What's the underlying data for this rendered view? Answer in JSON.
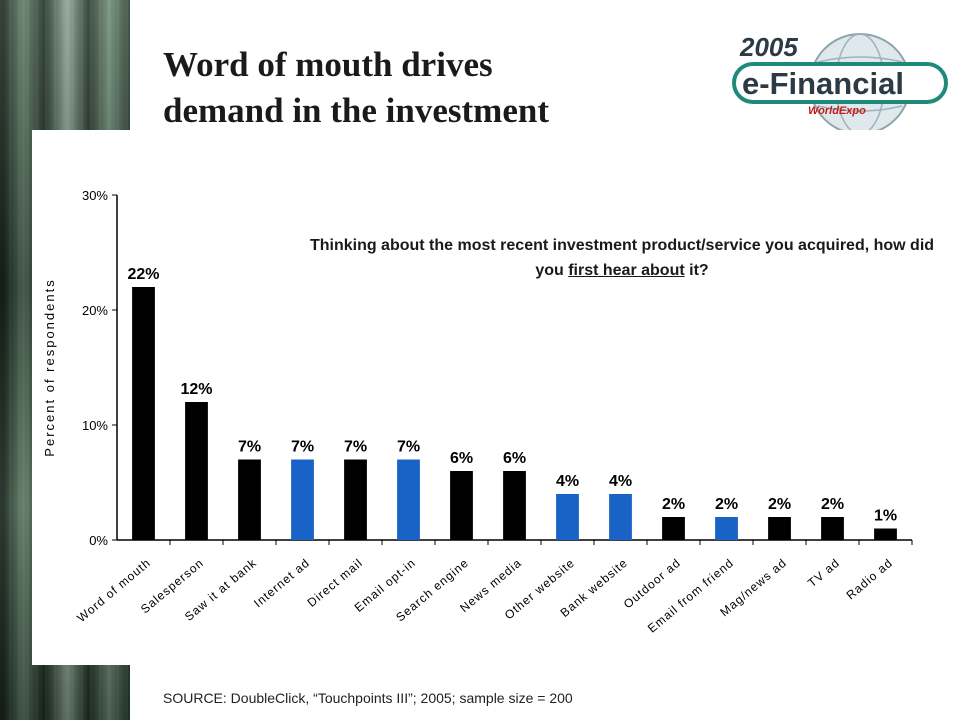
{
  "slide": {
    "title_line1": "Word of mouth drives",
    "title_line2": "demand in the investment",
    "source": "SOURCE: DoubleClick, “Touchpoints III”; 2005; sample size = 200"
  },
  "logo": {
    "year": "2005",
    "name": "e-Financial",
    "sub": "WorldExpo",
    "colors": {
      "teal": "#1f8a7a",
      "dark": "#2b3a44",
      "red": "#c41b1b"
    }
  },
  "question": {
    "before": "Thinking about the most recent investment product/service you acquired, how did you ",
    "underlined": "first hear about",
    "after": " it?"
  },
  "chart_data": {
    "type": "bar",
    "ylabel": "Percent of respondents",
    "xlabel": "",
    "ylim": [
      0,
      30
    ],
    "yticks": [
      "0%",
      "10%",
      "20%",
      "30%"
    ],
    "grid": false,
    "categories": [
      "Word of mouth",
      "Salesperson",
      "Saw it at bank",
      "Internet ad",
      "Direct mail",
      "Email opt-in",
      "Search engine",
      "News media",
      "Other website",
      "Bank website",
      "Outdoor ad",
      "Email from friend",
      "Mag/news ad",
      "TV ad",
      "Radio ad"
    ],
    "values": [
      22,
      12,
      7,
      7,
      7,
      7,
      6,
      6,
      4,
      4,
      2,
      2,
      2,
      2,
      1
    ],
    "value_labels": [
      "22%",
      "12%",
      "7%",
      "7%",
      "7%",
      "7%",
      "6%",
      "6%",
      "4%",
      "4%",
      "2%",
      "2%",
      "2%",
      "2%",
      "1%"
    ],
    "bar_colors": [
      "#000000",
      "#000000",
      "#000000",
      "#1a63c6",
      "#000000",
      "#1a63c6",
      "#000000",
      "#000000",
      "#1a63c6",
      "#1a63c6",
      "#000000",
      "#1a63c6",
      "#000000",
      "#000000",
      "#000000"
    ]
  }
}
